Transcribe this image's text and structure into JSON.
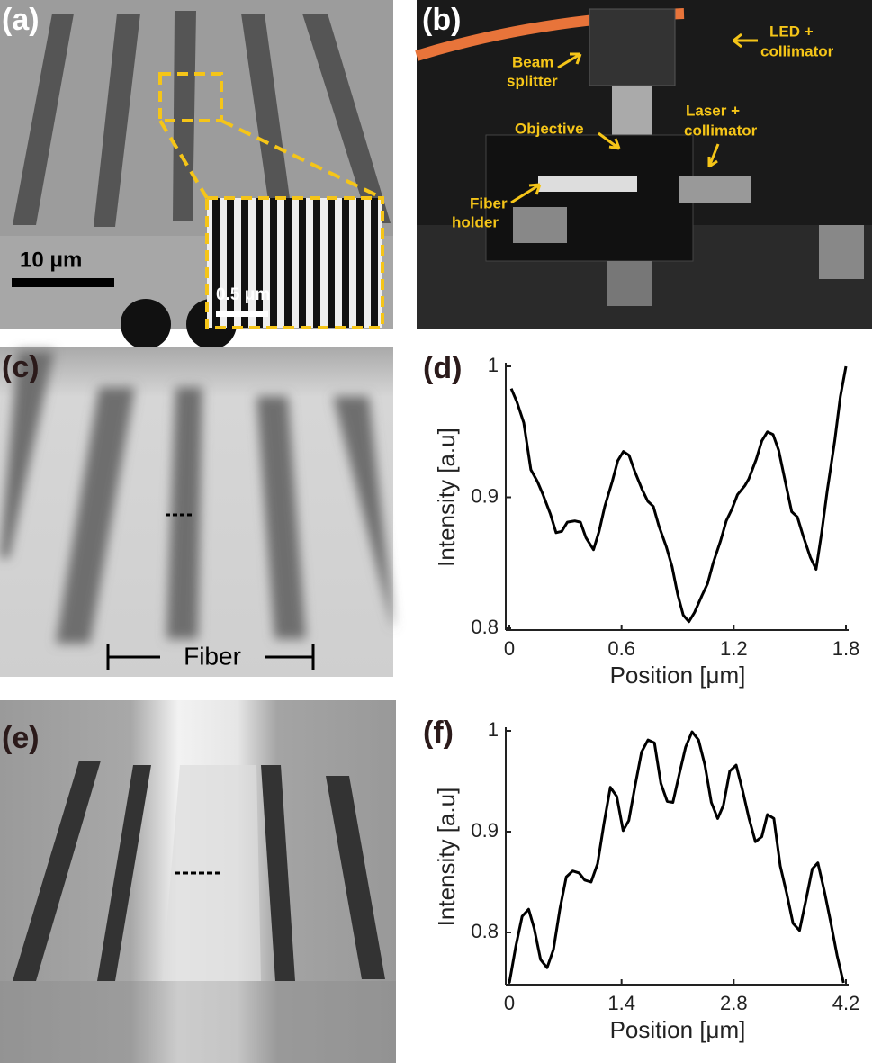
{
  "images": {
    "a": {
      "label": "(a)",
      "scale_bar": "10 μm",
      "inset_scale_bar": "0.5 μm"
    },
    "b": {
      "label": "(b)",
      "annotations": [
        "Beam",
        "splitter",
        "LED +",
        "collimator",
        "Laser +",
        "collimator",
        "Objective",
        "Fiber",
        "holder"
      ]
    },
    "c": {
      "label": "(c)",
      "annotation": "Fiber"
    },
    "e": {
      "label": "(e)"
    }
  },
  "chart_data": [
    {
      "type": "line",
      "panel_label": "(d)",
      "xlabel": "Position [μm]",
      "ylabel": "Intensity [a.u]",
      "color": "#000000",
      "xlim": [
        0,
        1.8
      ],
      "ylim": [
        0.8,
        1
      ],
      "xticks": [
        0,
        0.6,
        1.2,
        1.8
      ],
      "yticks": [
        0.8,
        0.9,
        1
      ],
      "x": [
        0.01,
        0.04,
        0.077,
        0.115,
        0.15,
        0.18,
        0.22,
        0.25,
        0.28,
        0.31,
        0.35,
        0.38,
        0.41,
        0.45,
        0.48,
        0.51,
        0.55,
        0.58,
        0.61,
        0.64,
        0.67,
        0.71,
        0.74,
        0.77,
        0.8,
        0.84,
        0.87,
        0.9,
        0.93,
        0.96,
        0.99,
        1.03,
        1.06,
        1.09,
        1.13,
        1.16,
        1.19,
        1.22,
        1.26,
        1.28,
        1.32,
        1.35,
        1.38,
        1.41,
        1.44,
        1.48,
        1.51,
        1.54,
        1.57,
        1.61,
        1.64,
        1.67,
        1.7,
        1.74,
        1.77,
        1.8
      ],
      "values": [
        0.983,
        0.973,
        0.957,
        0.921,
        0.912,
        0.902,
        0.887,
        0.873,
        0.874,
        0.881,
        0.882,
        0.881,
        0.869,
        0.86,
        0.874,
        0.893,
        0.912,
        0.928,
        0.935,
        0.932,
        0.92,
        0.906,
        0.897,
        0.893,
        0.878,
        0.862,
        0.847,
        0.826,
        0.81,
        0.805,
        0.812,
        0.825,
        0.834,
        0.85,
        0.867,
        0.882,
        0.891,
        0.902,
        0.909,
        0.914,
        0.929,
        0.943,
        0.95,
        0.948,
        0.936,
        0.909,
        0.889,
        0.885,
        0.871,
        0.854,
        0.845,
        0.873,
        0.905,
        0.943,
        0.977,
        1.0
      ]
    },
    {
      "type": "line",
      "panel_label": "(f)",
      "xlabel": "Position [μm]",
      "ylabel": "Intensity [a.u]",
      "color": "#000000",
      "xlim": [
        0,
        4.2
      ],
      "ylim": [
        0.75,
        1
      ],
      "xticks": [
        0,
        1.4,
        2.8,
        4.2
      ],
      "yticks": [
        0.8,
        0.9,
        1
      ],
      "x": [
        0,
        0.08,
        0.16,
        0.24,
        0.31,
        0.39,
        0.47,
        0.55,
        0.63,
        0.71,
        0.79,
        0.87,
        0.94,
        1.02,
        1.1,
        1.18,
        1.26,
        1.34,
        1.42,
        1.49,
        1.57,
        1.65,
        1.73,
        1.81,
        1.89,
        1.97,
        2.04,
        2.12,
        2.2,
        2.28,
        2.36,
        2.44,
        2.52,
        2.6,
        2.67,
        2.75,
        2.83,
        2.91,
        2.99,
        3.07,
        3.15,
        3.22,
        3.3,
        3.38,
        3.46,
        3.54,
        3.62,
        3.7,
        3.78,
        3.85,
        3.93,
        4.01,
        4.09,
        4.17
      ],
      "values": [
        0.75,
        0.786,
        0.816,
        0.823,
        0.804,
        0.773,
        0.765,
        0.783,
        0.823,
        0.855,
        0.861,
        0.859,
        0.852,
        0.85,
        0.868,
        0.908,
        0.944,
        0.935,
        0.901,
        0.911,
        0.946,
        0.979,
        0.991,
        0.988,
        0.948,
        0.93,
        0.929,
        0.957,
        0.984,
        0.999,
        0.991,
        0.966,
        0.929,
        0.913,
        0.926,
        0.96,
        0.966,
        0.941,
        0.913,
        0.89,
        0.895,
        0.917,
        0.913,
        0.866,
        0.839,
        0.809,
        0.802,
        0.832,
        0.863,
        0.869,
        0.841,
        0.81,
        0.777,
        0.75
      ]
    }
  ]
}
